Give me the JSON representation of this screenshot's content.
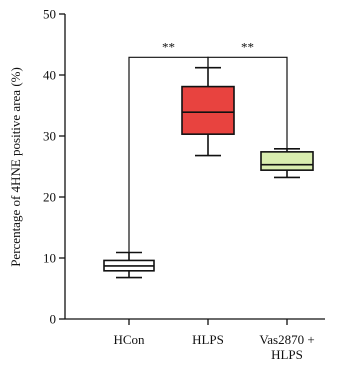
{
  "chart_data": {
    "type": "box",
    "title": "",
    "xlabel": "",
    "ylabel": "Percentage of 4HNE positive area (%)",
    "ylim": [
      0,
      50
    ],
    "yticks": [
      "0",
      "10",
      "20",
      "30",
      "40",
      "50"
    ],
    "categories": [
      {
        "label_lines": [
          "HCon"
        ]
      },
      {
        "label_lines": [
          "HLPS"
        ]
      },
      {
        "label_lines": [
          "Vas2870 +",
          "HLPS"
        ]
      }
    ],
    "boxes": [
      {
        "whisker_low": 6.8,
        "q1": 7.9,
        "median": 8.7,
        "q3": 9.6,
        "whisker_high": 10.9,
        "fill": "#ffffff"
      },
      {
        "whisker_low": 26.8,
        "q1": 30.3,
        "median": 33.9,
        "q3": 38.1,
        "whisker_high": 41.2,
        "fill": "#e8433f"
      },
      {
        "whisker_low": 23.2,
        "q1": 24.4,
        "median": 25.3,
        "q3": 27.4,
        "whisker_high": 27.9,
        "fill": "#d9edaf"
      }
    ],
    "significance": [
      {
        "from": 0,
        "to": 1,
        "label": "**"
      },
      {
        "from": 1,
        "to": 2,
        "label": "**"
      }
    ],
    "bracket_level": 42.9,
    "grid": false,
    "legend": "none"
  }
}
